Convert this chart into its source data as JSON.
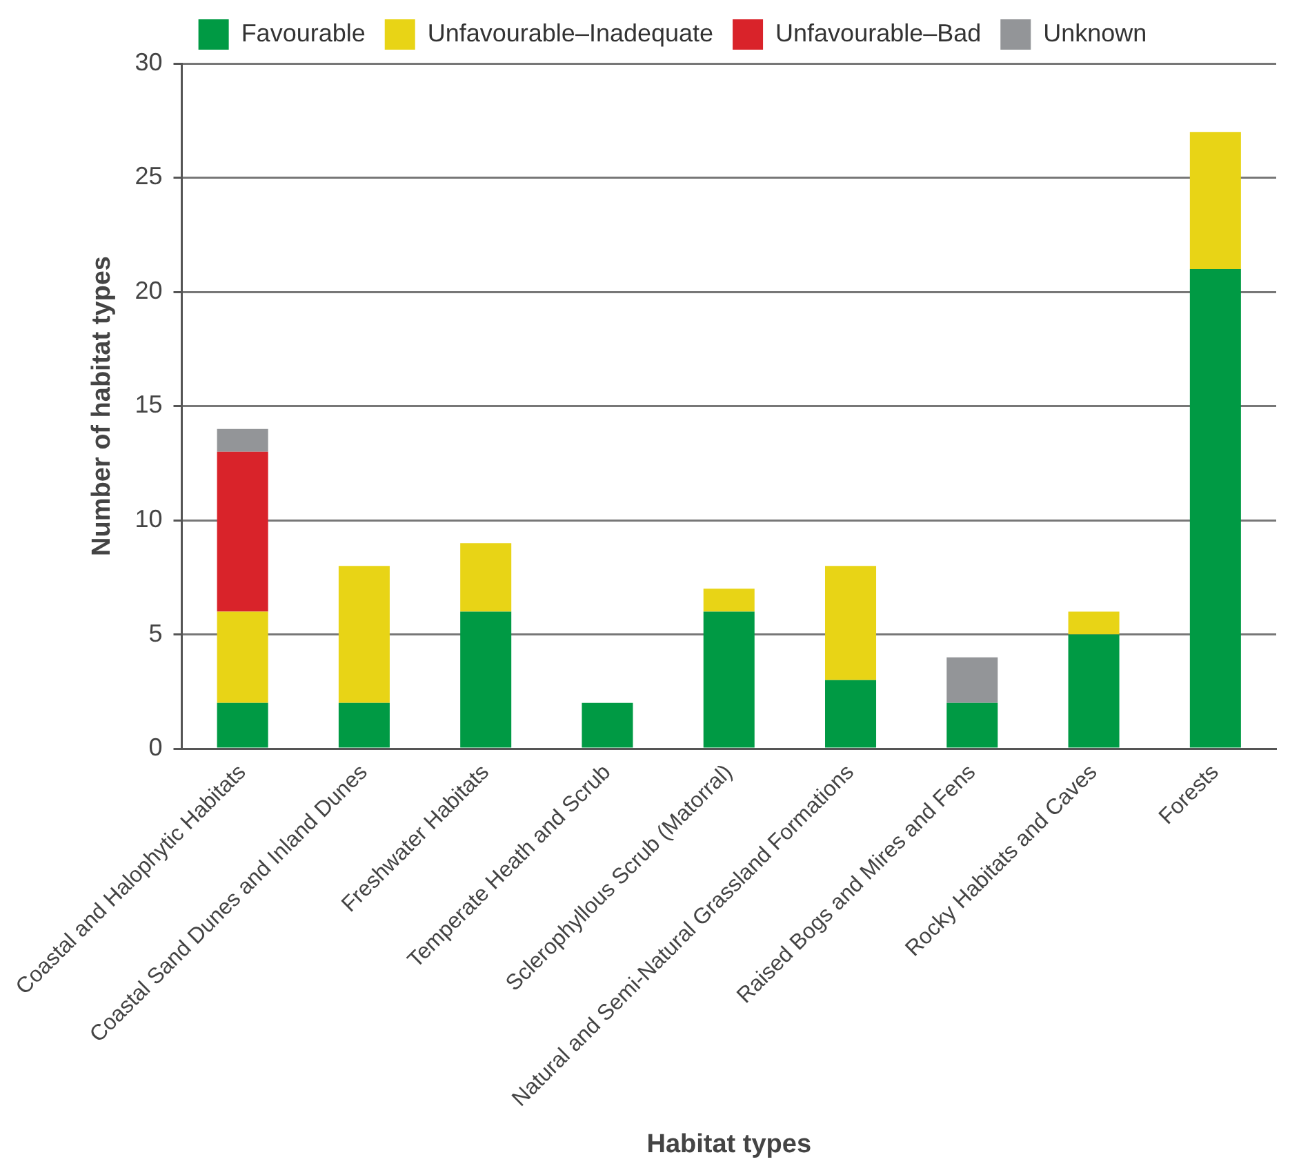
{
  "chart_data": {
    "type": "bar",
    "stacked": true,
    "xlabel": "Habitat types",
    "ylabel": "Number of habitat types",
    "categories": [
      "Coastal and Halophytic Habitats",
      "Coastal Sand Dunes and Inland Dunes",
      "Freshwater Habitats",
      "Temperate Heath and Scrub",
      "Sclerophyllous Scrub (Matorral)",
      "Natural and Semi-Natural Grassland Formations",
      "Raised Bogs and Mires and Fens",
      "Rocky Habitats and Caves",
      "Forests"
    ],
    "series": [
      {
        "name": "Favourable",
        "color": "#009a44",
        "values": [
          2,
          2,
          6,
          2,
          6,
          3,
          2,
          5,
          21
        ]
      },
      {
        "name": "Unfavourable–Inadequate",
        "color": "#e8d416",
        "values": [
          4,
          6,
          3,
          0,
          1,
          5,
          0,
          1,
          6
        ]
      },
      {
        "name": "Unfavourable–Bad",
        "color": "#d9232a",
        "values": [
          7,
          0,
          0,
          0,
          0,
          0,
          0,
          0,
          0
        ]
      },
      {
        "name": "Unknown",
        "color": "#939598",
        "values": [
          1,
          0,
          0,
          0,
          0,
          0,
          2,
          0,
          0
        ]
      }
    ],
    "ylim": [
      0,
      30
    ],
    "yticks": [
      0,
      5,
      10,
      15,
      20,
      25,
      30
    ],
    "grid": "y",
    "legend": "top"
  }
}
